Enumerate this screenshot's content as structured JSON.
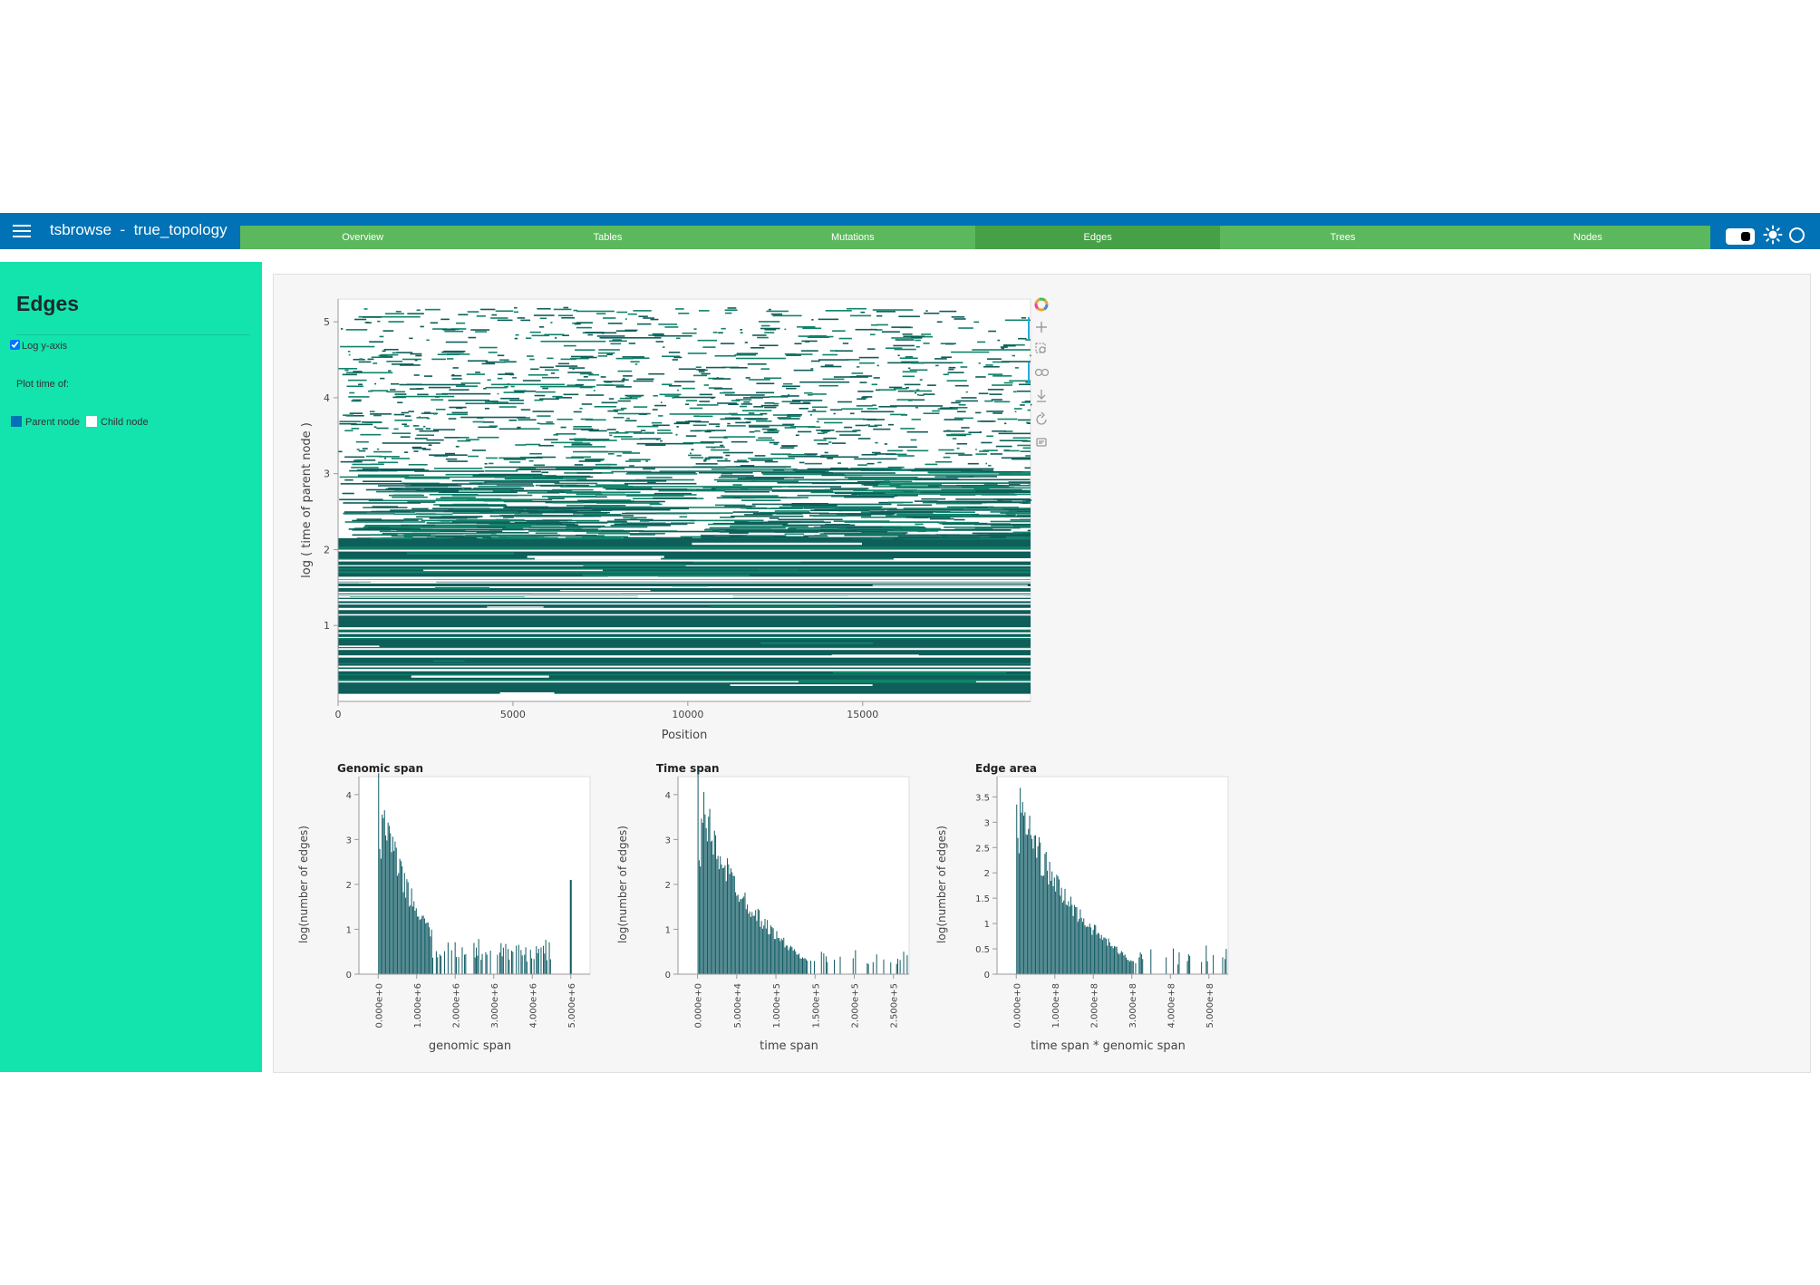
{
  "header": {
    "app_title": "tsbrowse  -  true_topology",
    "tabs": [
      {
        "label": "Overview",
        "active": false
      },
      {
        "label": "Tables",
        "active": false
      },
      {
        "label": "Mutations",
        "active": false
      },
      {
        "label": "Edges",
        "active": true
      },
      {
        "label": "Trees",
        "active": false
      },
      {
        "label": "Nodes",
        "active": false
      }
    ]
  },
  "sidebar": {
    "title": "Edges",
    "log_y_label": "Log y-axis",
    "log_y_checked": true,
    "plot_time_label": "Plot time of:",
    "options": [
      {
        "label": "Parent node",
        "selected": true
      },
      {
        "label": "Child node",
        "selected": false
      }
    ]
  },
  "colors": {
    "header": "#0072b5",
    "tabs": "#5cb85c",
    "tab_active": "#46a046",
    "sidebar": "#13e3ad",
    "edge_dark": "#0e5e5a",
    "edge_light": "#10826a",
    "hist_bar": "#0f5a63"
  },
  "chart_data": [
    {
      "type": "scatter",
      "xlabel": "Position",
      "ylabel": "log ( time of parent node )",
      "x_ticks": [
        "0",
        "5000",
        "10000",
        "15000"
      ],
      "y_ticks": [
        "1",
        "2",
        "3",
        "4",
        "5"
      ],
      "xlim": [
        0,
        19800
      ],
      "ylim": [
        0,
        5.3
      ],
      "toolbar_icons": [
        "bokeh-logo-icon",
        "pan-icon",
        "box-zoom-icon",
        "wheel-zoom-icon",
        "save-icon",
        "reset-icon",
        "hover-icon"
      ]
    },
    {
      "type": "bar",
      "title": "Genomic span",
      "xlabel": "genomic span",
      "ylabel": "log(number of edges)",
      "x_ticks": [
        "0.000e+0",
        "1.000e+6",
        "2.000e+6",
        "3.000e+6",
        "4.000e+6",
        "5.000e+6"
      ],
      "y_ticks": [
        "0",
        "1",
        "2",
        "3",
        "4"
      ],
      "xlim": [
        -500000,
        5500000
      ],
      "ylim": [
        0,
        4.4
      ],
      "peak": 4.1,
      "end_spike": {
        "x": 5000000,
        "value": 2.1
      }
    },
    {
      "type": "bar",
      "title": "Time span",
      "xlabel": "time span",
      "ylabel": "log(number of edges)",
      "x_ticks": [
        "0.000e+0",
        "5.000e+4",
        "1.000e+5",
        "1.500e+5",
        "2.000e+5",
        "2.500e+5"
      ],
      "y_ticks": [
        "0",
        "1",
        "2",
        "3",
        "4"
      ],
      "xlim": [
        -25000,
        270000
      ],
      "ylim": [
        0,
        4.4
      ],
      "peak": 4.05
    },
    {
      "type": "bar",
      "title": "Edge area",
      "xlabel": "time span * genomic span",
      "ylabel": "log(number of edges)",
      "x_ticks": [
        "0.000e+0",
        "1.000e+8",
        "2.000e+8",
        "3.000e+8",
        "4.000e+8",
        "5.000e+8"
      ],
      "y_ticks": [
        "0",
        "0.5",
        "1",
        "1.5",
        "2",
        "2.5",
        "3",
        "3.5"
      ],
      "xlim": [
        -50000000,
        550000000
      ],
      "ylim": [
        0,
        3.9
      ],
      "peak": 3.6
    }
  ]
}
